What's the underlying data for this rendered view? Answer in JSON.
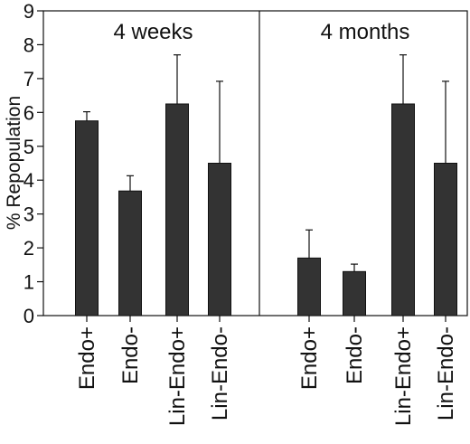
{
  "chart_data": [
    {
      "type": "bar",
      "title": "4 weeks",
      "categories": [
        "Endo+",
        "Endo-",
        "Lin-Endo+",
        "Lin-Endo-"
      ],
      "values": [
        5.75,
        3.68,
        6.25,
        4.5
      ],
      "error_plus": [
        0.27,
        0.45,
        1.45,
        2.42
      ],
      "ylabel": "% Repopulation",
      "ylim": [
        0,
        9
      ],
      "yticks": [
        0,
        1,
        2,
        3,
        4,
        5,
        6,
        7,
        8,
        9
      ],
      "bar_color": "#333333",
      "grid": false
    },
    {
      "type": "bar",
      "title": "4 months",
      "categories": [
        "Endo+",
        "Endo-",
        "Lin-Endo+",
        "Lin-Endo-"
      ],
      "values": [
        1.7,
        1.3,
        6.25,
        4.5
      ],
      "error_plus": [
        0.83,
        0.22,
        1.45,
        2.42
      ],
      "ylim": [
        0,
        9
      ],
      "bar_color": "#333333",
      "grid": false
    }
  ]
}
